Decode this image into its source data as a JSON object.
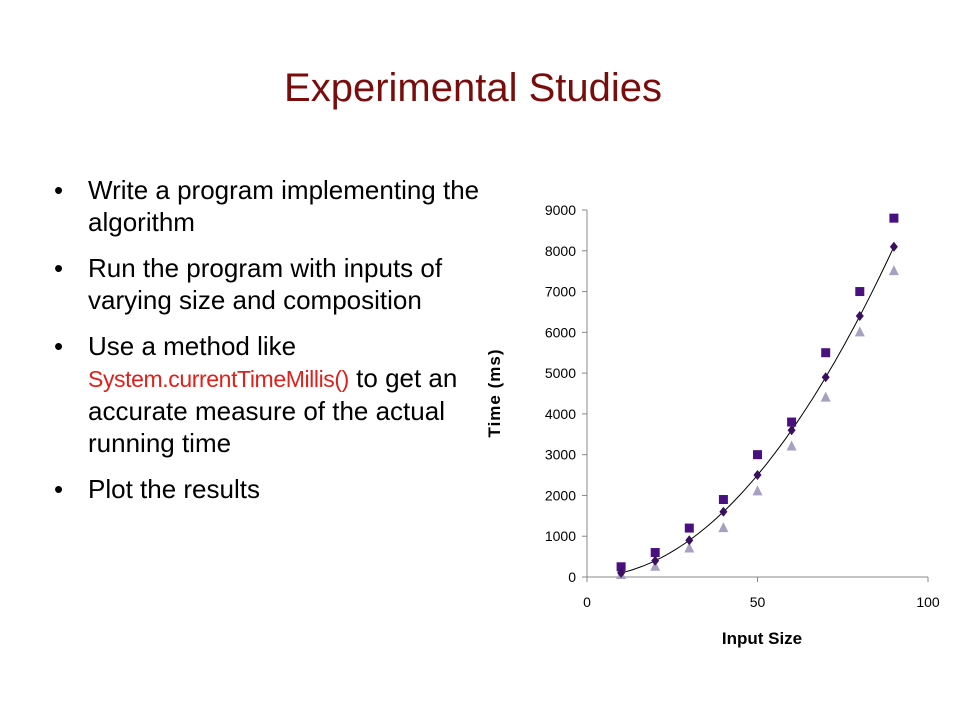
{
  "slide": {
    "title": "Experimental Studies",
    "bullets": [
      {
        "text": "Write a program implementing the algorithm"
      },
      {
        "text": "Run the program with inputs of varying size and composition"
      },
      {
        "before": "Use a method like ",
        "code": "System.currentTimeMillis()",
        "after": " to get an accurate measure of the actual running time"
      },
      {
        "text": "Plot the results"
      }
    ]
  },
  "colors": {
    "title": "#7a0c0c",
    "code": "#e0201b",
    "series_square": "#4b1080",
    "series_diamond": "#3a0f5e",
    "series_triangle": "#a7a0c0",
    "trendline": "#000000"
  },
  "chart_data": {
    "type": "scatter",
    "xlabel": "Input Size",
    "ylabel": "Time (ms)",
    "xlim": [
      0,
      100
    ],
    "ylim": [
      0,
      9000
    ],
    "xticks": [
      0,
      50,
      100
    ],
    "yticks": [
      0,
      1000,
      2000,
      3000,
      4000,
      5000,
      6000,
      7000,
      8000,
      9000
    ],
    "grid": false,
    "legend": "none",
    "series": [
      {
        "marker": "square",
        "x": [
          10,
          20,
          30,
          40,
          50,
          60,
          70,
          80,
          90
        ],
        "y": [
          250,
          600,
          1200,
          1900,
          3000,
          3800,
          5500,
          7000,
          8800
        ]
      },
      {
        "marker": "diamond",
        "x": [
          10,
          20,
          30,
          40,
          50,
          60,
          70,
          80,
          90
        ],
        "y": [
          100,
          400,
          900,
          1600,
          2500,
          3600,
          4900,
          6400,
          8100
        ]
      },
      {
        "marker": "triangle",
        "x": [
          10,
          20,
          30,
          40,
          50,
          60,
          70,
          80,
          90
        ],
        "y": [
          50,
          250,
          700,
          1200,
          2100,
          3200,
          4400,
          6000,
          7500
        ]
      }
    ],
    "trendline": {
      "type": "polynomial",
      "degree": 2,
      "x_range": [
        10,
        90
      ]
    }
  }
}
